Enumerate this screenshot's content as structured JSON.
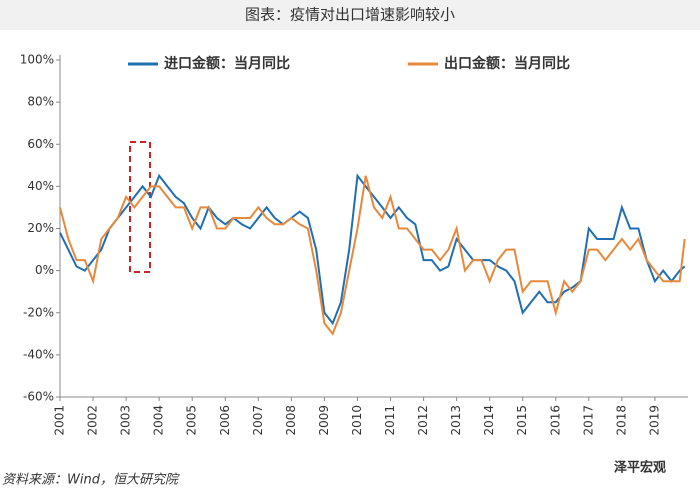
{
  "chart_data": {
    "type": "line",
    "title": "图表：疫情对出口增速影响较小",
    "source": "资料来源：Wind，恒大研究院",
    "watermark": "泽平宏观",
    "x": [
      2001,
      2001.25,
      2001.5,
      2001.75,
      2002,
      2002.25,
      2002.5,
      2002.75,
      2003,
      2003.25,
      2003.5,
      2003.75,
      2004,
      2004.25,
      2004.5,
      2004.75,
      2005,
      2005.25,
      2005.5,
      2005.75,
      2006,
      2006.25,
      2006.5,
      2006.75,
      2007,
      2007.25,
      2007.5,
      2007.75,
      2008,
      2008.25,
      2008.5,
      2008.75,
      2009,
      2009.25,
      2009.5,
      2009.75,
      2010,
      2010.25,
      2010.5,
      2010.75,
      2011,
      2011.25,
      2011.5,
      2011.75,
      2012,
      2012.25,
      2012.5,
      2012.75,
      2013,
      2013.25,
      2013.5,
      2013.75,
      2014,
      2014.25,
      2014.5,
      2014.75,
      2015,
      2015.25,
      2015.5,
      2015.75,
      2016,
      2016.25,
      2016.5,
      2016.75,
      2017,
      2017.25,
      2017.5,
      2017.75,
      2018,
      2018.25,
      2018.5,
      2018.75,
      2019,
      2019.25,
      2019.5,
      2019.75,
      2019.9
    ],
    "series": [
      {
        "name": "进口金额：当月同比",
        "color": "#1f6fb2",
        "values": [
          18,
          10,
          2,
          0,
          5,
          10,
          20,
          25,
          30,
          35,
          40,
          35,
          45,
          40,
          35,
          32,
          25,
          20,
          30,
          25,
          22,
          25,
          22,
          20,
          25,
          30,
          25,
          22,
          25,
          28,
          25,
          10,
          -20,
          -25,
          -15,
          10,
          45,
          40,
          35,
          30,
          25,
          30,
          25,
          22,
          5,
          5,
          0,
          2,
          15,
          10,
          5,
          5,
          5,
          2,
          0,
          -5,
          -20,
          -15,
          -10,
          -15,
          -15,
          -10,
          -8,
          -5,
          20,
          15,
          15,
          15,
          30,
          20,
          20,
          5,
          -5,
          0,
          -5,
          0,
          2
        ]
      },
      {
        "name": "出口金额：当月同比",
        "color": "#e8883a",
        "values": [
          30,
          15,
          5,
          5,
          -5,
          15,
          20,
          25,
          35,
          30,
          35,
          40,
          40,
          35,
          30,
          30,
          20,
          30,
          30,
          20,
          20,
          25,
          25,
          25,
          30,
          25,
          22,
          22,
          25,
          22,
          20,
          0,
          -25,
          -30,
          -20,
          0,
          20,
          45,
          30,
          25,
          35,
          20,
          20,
          15,
          10,
          10,
          5,
          10,
          20,
          0,
          5,
          5,
          -5,
          5,
          10,
          10,
          -10,
          -5,
          -5,
          -5,
          -20,
          -5,
          -10,
          -5,
          10,
          10,
          5,
          10,
          15,
          10,
          15,
          5,
          0,
          -5,
          -5,
          -5,
          15
        ]
      }
    ],
    "xlim": [
      2001,
      2020
    ],
    "xticks": [
      2001,
      2002,
      2003,
      2004,
      2005,
      2006,
      2007,
      2008,
      2009,
      2010,
      2011,
      2012,
      2013,
      2014,
      2015,
      2016,
      2017,
      2018,
      2019
    ],
    "ylim": [
      -60,
      100
    ],
    "yticks": [
      {
        "value": -60,
        "label": "-60%"
      },
      {
        "value": -40,
        "label": "-40%"
      },
      {
        "value": -20,
        "label": "-20%"
      },
      {
        "value": 0,
        "label": "0%"
      },
      {
        "value": 20,
        "label": "20%"
      },
      {
        "value": 40,
        "label": "40%"
      },
      {
        "value": 60,
        "label": "60%"
      },
      {
        "value": 80,
        "label": "80%"
      },
      {
        "value": 100,
        "label": "100%"
      }
    ]
  }
}
